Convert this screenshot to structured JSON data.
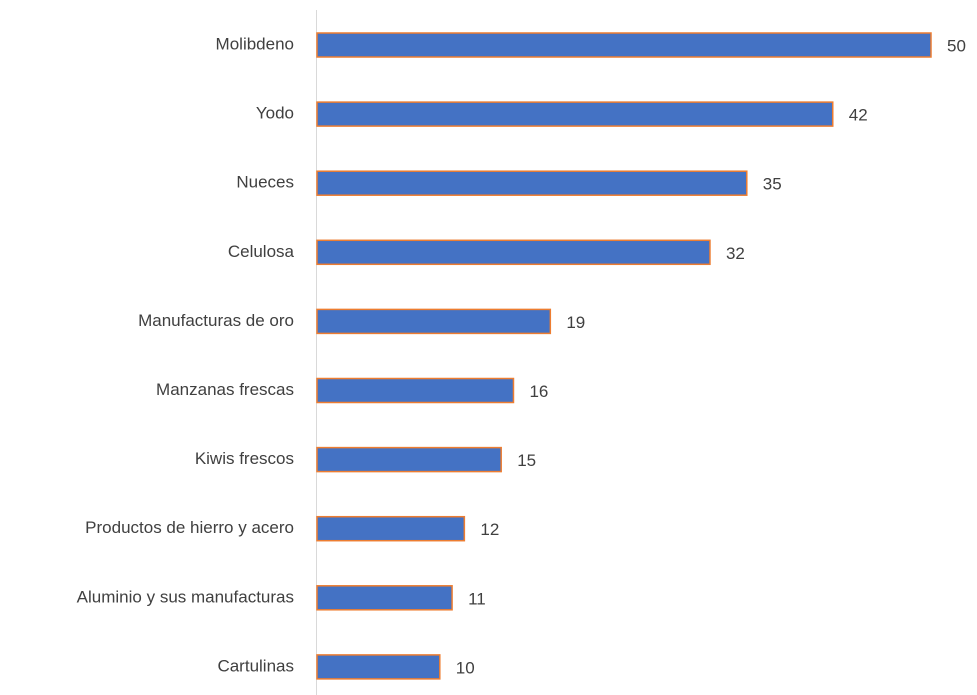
{
  "chart_data": {
    "type": "bar",
    "orientation": "horizontal",
    "categories": [
      "Molibdeno",
      "Yodo",
      "Nueces",
      "Celulosa",
      "Manufacturas de oro",
      "Manzanas frescas",
      "Kiwis frescos",
      "Productos de hierro y acero",
      "Aluminio y sus manufacturas",
      "Cartulinas"
    ],
    "values": [
      50,
      42,
      35,
      32,
      19,
      16,
      15,
      12,
      11,
      10
    ],
    "color": "#4472c4",
    "edge_color": "#ed7d31"
  }
}
